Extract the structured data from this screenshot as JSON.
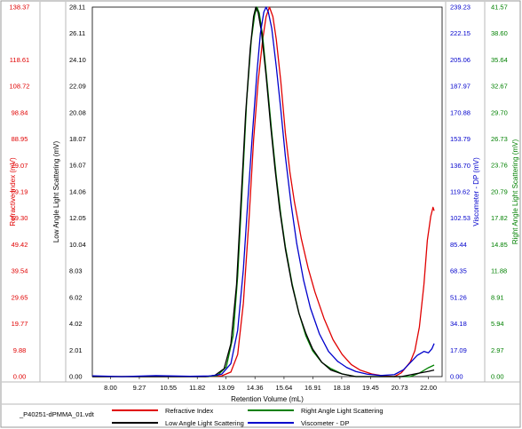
{
  "chart_data": {
    "type": "line",
    "xlabel": "Retention Volume (mL)",
    "x_ticks": [
      "8.00",
      "9.27",
      "10.55",
      "11.82",
      "13.09",
      "14.36",
      "15.64",
      "16.91",
      "18.18",
      "19.45",
      "20.73",
      "22.00"
    ],
    "xlim": [
      7.2,
      22.6
    ],
    "file_label": "_P40251-dPMMA_01.vdt",
    "axes": [
      {
        "id": "ri",
        "label": "Refractive Index (mV)",
        "color": "#e00000",
        "min": 0.0,
        "max": 138.37,
        "ticks": [
          "0.00",
          "9.88",
          "19.77",
          "29.65",
          "39.54",
          "49.42",
          "59.30",
          "69.19",
          "79.07",
          "88.95",
          "98.84",
          "108.72",
          "118.61",
          "138.37"
        ]
      },
      {
        "id": "lals",
        "label": "Low Angle Light Scattering (mV)",
        "color": "#000000",
        "min": 0.0,
        "max": 28.11,
        "ticks": [
          "0.00",
          "2.01",
          "4.02",
          "6.02",
          "8.03",
          "10.04",
          "12.05",
          "14.06",
          "16.07",
          "18.07",
          "20.08",
          "22.09",
          "24.10",
          "26.11",
          "28.11"
        ]
      },
      {
        "id": "dp",
        "label": "Viscometer - DP (mV)",
        "color": "#0000cc",
        "min": 0.0,
        "max": 239.23,
        "ticks": [
          "0.00",
          "17.09",
          "34.18",
          "51.26",
          "68.35",
          "85.44",
          "102.53",
          "119.62",
          "136.70",
          "153.79",
          "170.88",
          "187.97",
          "205.06",
          "222.15",
          "239.23"
        ]
      },
      {
        "id": "rals",
        "label": "Right Angle Light Scattering (mV)",
        "color": "#008000",
        "min": 0.0,
        "max": 41.57,
        "ticks": [
          "0.00",
          "2.97",
          "5.94",
          "8.91",
          "11.88",
          "14.85",
          "17.82",
          "20.79",
          "23.76",
          "26.73",
          "29.70",
          "32.67",
          "35.64",
          "38.60",
          "41.57"
        ]
      }
    ],
    "series": [
      {
        "name": "Refractive Index",
        "color": "#e00000",
        "axis": "ri",
        "points": [
          [
            7.2,
            0
          ],
          [
            12.3,
            0.0
          ],
          [
            12.9,
            0.3
          ],
          [
            13.3,
            1.7
          ],
          [
            13.6,
            8.3
          ],
          [
            13.85,
            27.5
          ],
          [
            14.1,
            59.1
          ],
          [
            14.3,
            88.6
          ],
          [
            14.5,
            110.4
          ],
          [
            14.7,
            126.2
          ],
          [
            14.85,
            134.8
          ],
          [
            15.0,
            138.37
          ],
          [
            15.15,
            134.8
          ],
          [
            15.3,
            126.2
          ],
          [
            15.5,
            110.4
          ],
          [
            15.7,
            91.2
          ],
          [
            15.9,
            76.5
          ],
          [
            16.1,
            65.3
          ],
          [
            16.4,
            51.7
          ],
          [
            16.7,
            40.7
          ],
          [
            17.0,
            31.7
          ],
          [
            17.4,
            21.8
          ],
          [
            17.8,
            13.8
          ],
          [
            18.2,
            8.3
          ],
          [
            18.6,
            4.5
          ],
          [
            19.0,
            2.4
          ],
          [
            19.5,
            1.0
          ],
          [
            20.0,
            0.3
          ],
          [
            20.5,
            0.0
          ],
          [
            20.8,
            1.4
          ],
          [
            21.0,
            3.4
          ],
          [
            21.2,
            5.5
          ],
          [
            21.4,
            9.7
          ],
          [
            21.6,
            18.6
          ],
          [
            21.8,
            34.5
          ],
          [
            21.95,
            51.0
          ],
          [
            22.1,
            60.0
          ],
          [
            22.2,
            63.4
          ],
          [
            22.25,
            62.1
          ]
        ]
      },
      {
        "name": "Right Angle Light Scattering",
        "color": "#008000",
        "axis": "rals",
        "points": [
          [
            7.2,
            0
          ],
          [
            12.3,
            0.0
          ],
          [
            12.7,
            0.1
          ],
          [
            13.1,
            1.1
          ],
          [
            13.4,
            4.6
          ],
          [
            13.6,
            11.3
          ],
          [
            13.8,
            21.2
          ],
          [
            14.0,
            31.2
          ],
          [
            14.2,
            37.9
          ],
          [
            14.35,
            40.7
          ],
          [
            14.45,
            41.57
          ],
          [
            14.55,
            40.9
          ],
          [
            14.7,
            38.3
          ],
          [
            14.9,
            33.0
          ],
          [
            15.1,
            27.5
          ],
          [
            15.3,
            22.5
          ],
          [
            15.5,
            18.2
          ],
          [
            15.7,
            14.6
          ],
          [
            16.0,
            10.4
          ],
          [
            16.3,
            7.1
          ],
          [
            16.6,
            4.6
          ],
          [
            16.9,
            2.9
          ],
          [
            17.3,
            1.6
          ],
          [
            17.7,
            0.9
          ],
          [
            18.2,
            0.3
          ],
          [
            18.8,
            0.0
          ],
          [
            21.2,
            0.0
          ],
          [
            21.6,
            0.4
          ],
          [
            22.0,
            1.0
          ],
          [
            22.25,
            1.3
          ]
        ]
      },
      {
        "name": "Low Angle Light Scattering",
        "color": "#000000",
        "axis": "lals",
        "points": [
          [
            7.2,
            0
          ],
          [
            12.2,
            0.0
          ],
          [
            12.6,
            0.1
          ],
          [
            13.0,
            0.6
          ],
          [
            13.3,
            2.5
          ],
          [
            13.55,
            7.0
          ],
          [
            13.75,
            13.5
          ],
          [
            13.95,
            20.0
          ],
          [
            14.15,
            24.9
          ],
          [
            14.3,
            27.4
          ],
          [
            14.4,
            28.11
          ],
          [
            14.5,
            27.7
          ],
          [
            14.65,
            26.2
          ],
          [
            14.85,
            22.9
          ],
          [
            15.05,
            19.1
          ],
          [
            15.25,
            15.7
          ],
          [
            15.45,
            12.7
          ],
          [
            15.7,
            9.7
          ],
          [
            16.0,
            6.9
          ],
          [
            16.3,
            4.8
          ],
          [
            16.6,
            3.3
          ],
          [
            16.9,
            2.1
          ],
          [
            17.3,
            1.1
          ],
          [
            17.7,
            0.5
          ],
          [
            18.2,
            0.2
          ],
          [
            18.8,
            0.0
          ],
          [
            20.8,
            0.0
          ],
          [
            21.4,
            0.2
          ],
          [
            22.0,
            0.4
          ],
          [
            22.25,
            0.5
          ]
        ]
      },
      {
        "name": "Viscometer - DP",
        "color": "#0000cc",
        "axis": "dp",
        "points": [
          [
            7.2,
            0.5
          ],
          [
            8.5,
            0.0
          ],
          [
            10.0,
            0.6
          ],
          [
            11.5,
            0.2
          ],
          [
            12.4,
            0.4
          ],
          [
            12.9,
            1.6
          ],
          [
            13.3,
            8.4
          ],
          [
            13.6,
            30.0
          ],
          [
            13.85,
            69.5
          ],
          [
            14.05,
            114.5
          ],
          [
            14.25,
            157.4
          ],
          [
            14.45,
            197.2
          ],
          [
            14.6,
            222.2
          ],
          [
            14.75,
            236.0
          ],
          [
            14.85,
            239.23
          ],
          [
            14.95,
            236.0
          ],
          [
            15.1,
            225.4
          ],
          [
            15.3,
            200.6
          ],
          [
            15.5,
            172.6
          ],
          [
            15.7,
            142.5
          ],
          [
            15.95,
            111.9
          ],
          [
            16.2,
            86.1
          ],
          [
            16.5,
            62.5
          ],
          [
            16.8,
            44.5
          ],
          [
            17.2,
            27.6
          ],
          [
            17.6,
            16.3
          ],
          [
            18.0,
            9.9
          ],
          [
            18.4,
            5.9
          ],
          [
            18.8,
            3.3
          ],
          [
            19.3,
            1.6
          ],
          [
            19.9,
            0.7
          ],
          [
            20.5,
            1.3
          ],
          [
            20.9,
            4.4
          ],
          [
            21.2,
            9.0
          ],
          [
            21.5,
            13.7
          ],
          [
            21.8,
            16.3
          ],
          [
            22.0,
            15.4
          ],
          [
            22.15,
            18.0
          ],
          [
            22.25,
            21.4
          ]
        ]
      }
    ],
    "legend": [
      {
        "name": "Refractive Index",
        "color": "#e00000"
      },
      {
        "name": "Right Angle Light Scattering",
        "color": "#008000"
      },
      {
        "name": "Low Angle Light Scattering",
        "color": "#000000"
      },
      {
        "name": "Viscometer - DP",
        "color": "#0000cc"
      }
    ],
    "grid": false,
    "legend_position": "bottom"
  }
}
